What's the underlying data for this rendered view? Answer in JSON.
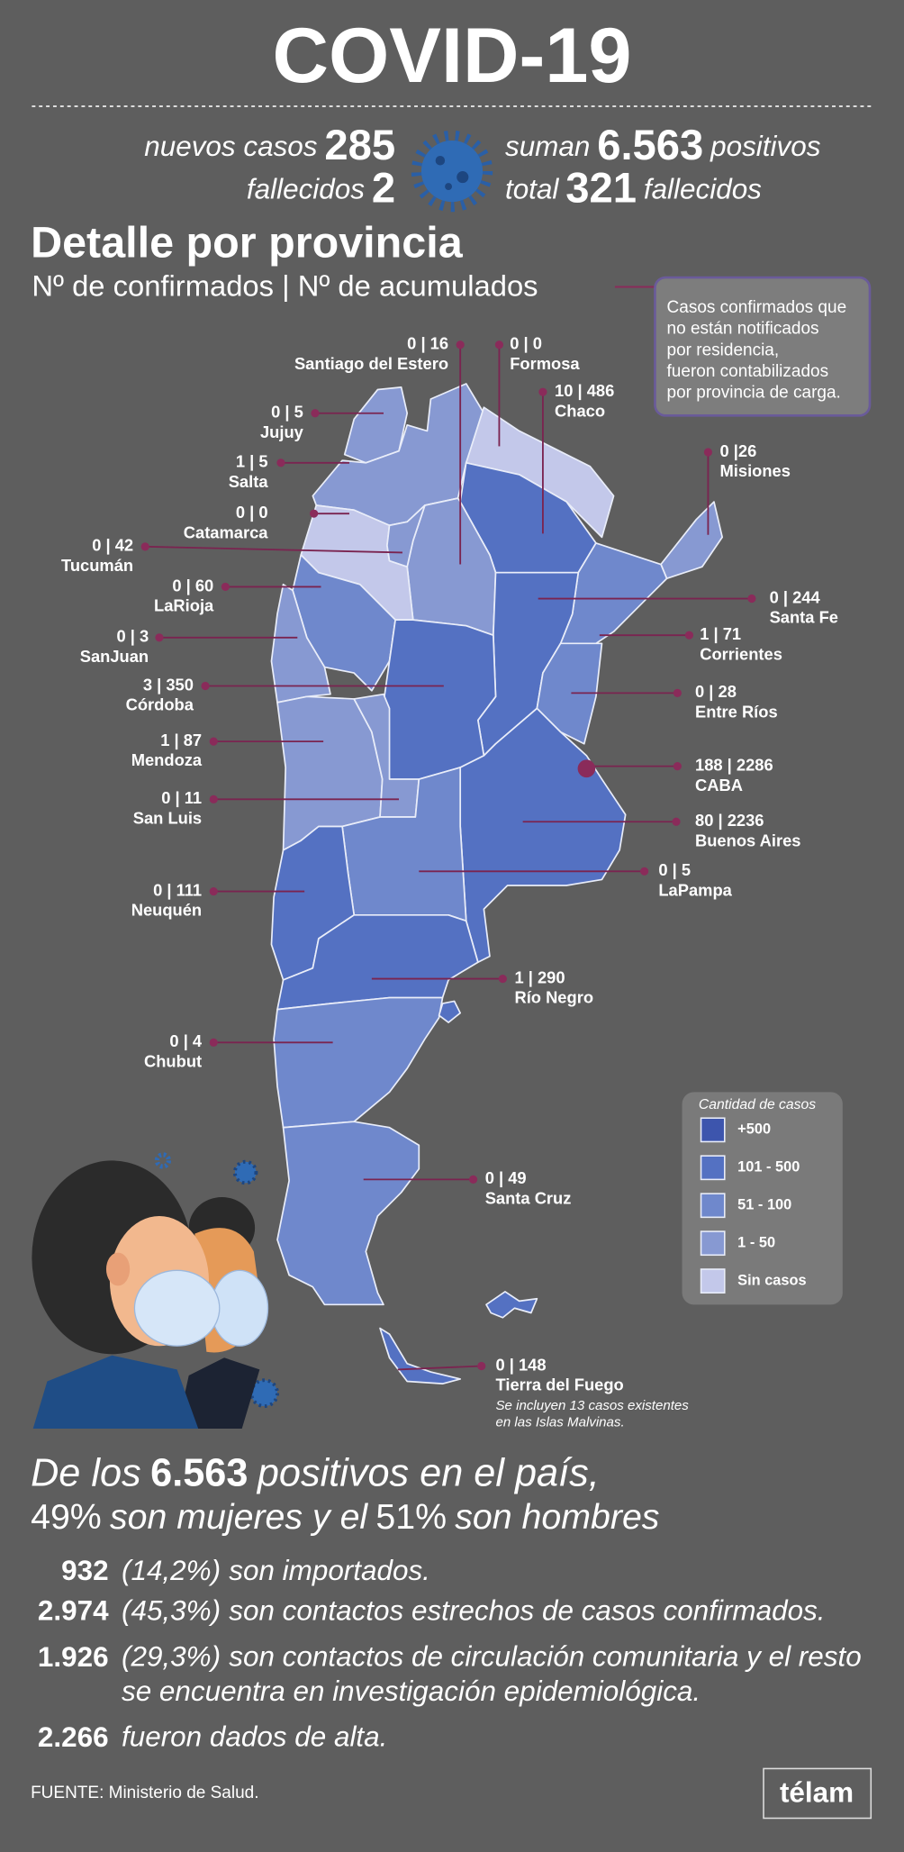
{
  "header": {
    "title": "COVID-19"
  },
  "summary": {
    "new_cases_label": "nuevos casos",
    "new_cases": "285",
    "total_label": "suman",
    "total": "6.563",
    "total_suffix": "positivos",
    "new_deaths_label": "fallecidos",
    "new_deaths": "2",
    "total_deaths_label": "total",
    "total_deaths": "321",
    "total_deaths_suffix": "fallecidos"
  },
  "detail": {
    "title": "Detalle por provincia",
    "subtitle": "Nº de confirmados | Nº de acumulados",
    "note": [
      "Casos confirmados que",
      "no están notificados",
      "por residencia,",
      "fueron contabilizados",
      "por provincia de carga."
    ]
  },
  "provinces": [
    {
      "label": "0 | 16",
      "name": "Santiago del Estero"
    },
    {
      "label": "0 | 0",
      "name": "Formosa"
    },
    {
      "label": "10 | 486",
      "name": "Chaco"
    },
    {
      "label": "0 | 5",
      "name": "Jujuy"
    },
    {
      "label": "1 | 5",
      "name": "Salta"
    },
    {
      "label": "0 | 0",
      "name": "Catamarca"
    },
    {
      "label": "0 | 42",
      "name": "Tucumán"
    },
    {
      "label": "0 | 60",
      "name": "LaRioja"
    },
    {
      "label": "0 | 3",
      "name": "SanJuan"
    },
    {
      "label": "3 | 350",
      "name": "Córdoba"
    },
    {
      "label": "1 | 87",
      "name": "Mendoza"
    },
    {
      "label": "0 | 11",
      "name": "San Luis"
    },
    {
      "label": "0 | 111",
      "name": "Neuquén"
    },
    {
      "label": "0 | 4",
      "name": "Chubut"
    },
    {
      "label": "0 |26",
      "name": "Misiones"
    },
    {
      "label": "0 | 244",
      "name": "Santa Fe"
    },
    {
      "label": "1 | 71",
      "name": "Corrientes"
    },
    {
      "label": "0 | 28",
      "name": "Entre Ríos"
    },
    {
      "label": "188 | 2286",
      "name": "CABA"
    },
    {
      "label": "80 | 2236",
      "name": "Buenos Aires"
    },
    {
      "label": "0 | 5",
      "name": "LaPampa"
    },
    {
      "label": "1 | 290",
      "name": "Río Negro"
    },
    {
      "label": "0 | 49",
      "name": "Santa Cruz"
    },
    {
      "label": "0 | 148",
      "name": "Tierra del Fuego"
    }
  ],
  "tdf_note": [
    "Se incluyen 13 casos existentes",
    "en las Islas Malvinas."
  ],
  "legend": {
    "title": "Cantidad de casos",
    "items": [
      {
        "label": "+500",
        "color": "#3d55ad"
      },
      {
        "label": "101 - 500",
        "color": "#5471c2"
      },
      {
        "label": "51 - 100",
        "color": "#6f88cc"
      },
      {
        "label": "1 - 50",
        "color": "#8799d2"
      },
      {
        "label": "Sin casos",
        "color": "#c3c8ea"
      }
    ]
  },
  "stats": {
    "line1": [
      "De los",
      "6.563",
      "positivos en el país,"
    ],
    "line2": [
      "49%",
      "son mujeres y el",
      "51%",
      "son hombres"
    ],
    "items": [
      {
        "count": "932",
        "pct": "(14,2%)",
        "text": [
          "son importados."
        ]
      },
      {
        "count": "2.974",
        "pct": "(45,3%)",
        "text": [
          "son contactos estrechos de casos confirmados."
        ]
      },
      {
        "count": "1.926",
        "pct": "(29,3%)",
        "text": [
          "son contactos de circulación comunitaria y el resto",
          "se encuentra en investigación epidemiológica."
        ]
      },
      {
        "count": "2.266",
        "pct": null,
        "text": [
          "fueron dados de alta."
        ]
      }
    ]
  },
  "footer": {
    "source": "FUENTE: Ministerio de Salud.",
    "brand": "télam"
  }
}
